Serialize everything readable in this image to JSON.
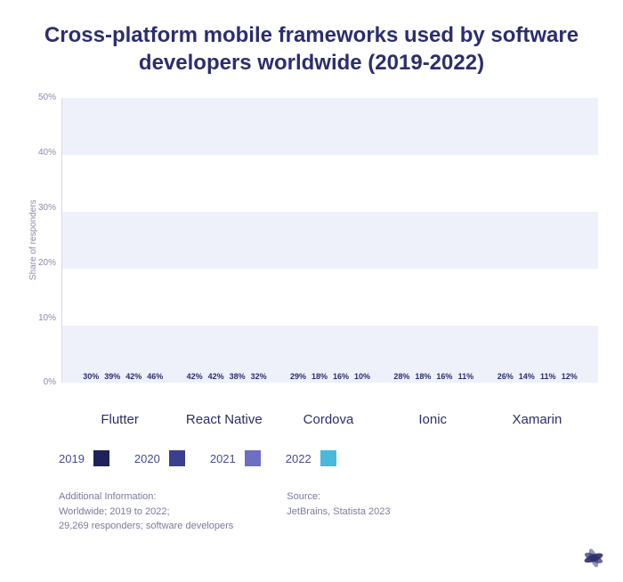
{
  "title": "Cross-platform mobile frameworks used by software developers worldwide (2019-2022)",
  "chart": {
    "type": "bar",
    "y_label": "Share of responders",
    "y_ticks": [
      "50%",
      "40%",
      "30%",
      "20%",
      "10%",
      "0%"
    ],
    "ylim": [
      0,
      50
    ],
    "categories": [
      "Flutter",
      "React Native",
      "Cordova",
      "Ionic",
      "Xamarin"
    ],
    "series": [
      {
        "name": "2019",
        "color": "#1f2158",
        "values": [
          30,
          42,
          29,
          28,
          26
        ]
      },
      {
        "name": "2020",
        "color": "#3c3f8f",
        "values": [
          39,
          42,
          18,
          18,
          14
        ]
      },
      {
        "name": "2021",
        "color": "#6c6fc4",
        "values": [
          42,
          38,
          16,
          16,
          11
        ]
      },
      {
        "name": "2022",
        "color": "#4ab9db",
        "values": [
          46,
          32,
          10,
          11,
          12
        ]
      }
    ],
    "background_color": "#ffffff",
    "band_color": "#eef0fa",
    "axis_color": "#d8d9e8",
    "title_color": "#2c2e6e",
    "label_color": "#8a8ba8"
  },
  "footer": {
    "info_title": "Additional Information:",
    "info_line1": "Worldwide; 2019 to 2022;",
    "info_line2": "29,269 responders; software developers",
    "source_title": "Source:",
    "source_line": "JetBrains, Statista 2023"
  },
  "logo_colors": {
    "fill": "#2c2e6e"
  }
}
